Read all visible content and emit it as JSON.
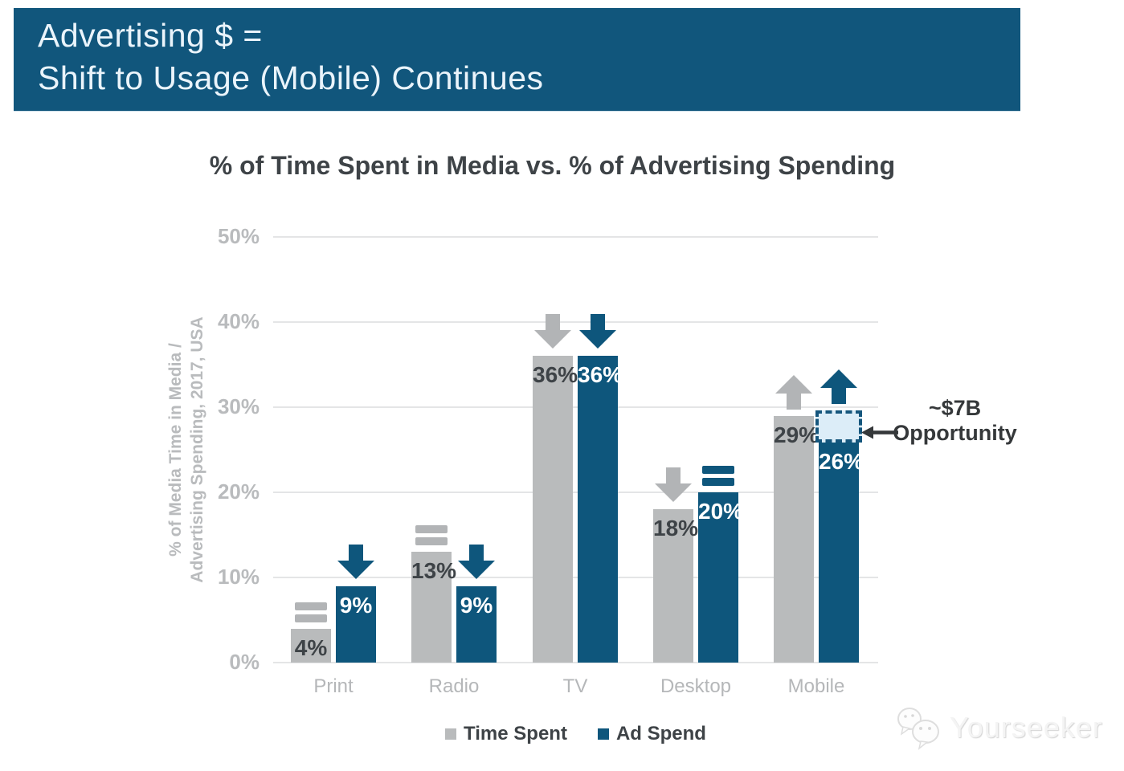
{
  "banner": {
    "line1": "Advertising $ =",
    "line2": "Shift to Usage (Mobile) Continues"
  },
  "chart_data": {
    "type": "bar",
    "title": "% of Time Spent in Media vs. % of Advertising Spending",
    "ylabel": "% of Media Time in Media / Advertising Spending, 2017, USA",
    "ylabel_line1": "% of Media Time in Media /",
    "ylabel_line2": "Advertising Spending, 2017, USA",
    "categories": [
      "Print",
      "Radio",
      "TV",
      "Desktop",
      "Mobile"
    ],
    "series": [
      {
        "name": "Time Spent",
        "values": [
          4,
          13,
          36,
          18,
          29
        ],
        "labels": [
          "4%",
          "13%",
          "36%",
          "18%",
          "29%"
        ],
        "color": "#B9BBBC",
        "trends": [
          "flat",
          "flat",
          "down",
          "down",
          "up"
        ]
      },
      {
        "name": "Ad Spend",
        "values": [
          9,
          9,
          36,
          20,
          26
        ],
        "labels": [
          "9%",
          "9%",
          "36%",
          "20%",
          "26%"
        ],
        "color": "#0E567C",
        "trends": [
          "down",
          "down",
          "down",
          "flat",
          "up"
        ]
      }
    ],
    "ylim": [
      0,
      50
    ],
    "yticks": [
      {
        "value": 0,
        "label": "0%"
      },
      {
        "value": 10,
        "label": "10%"
      },
      {
        "value": 20,
        "label": "20%"
      },
      {
        "value": 30,
        "label": "30%"
      },
      {
        "value": 40,
        "label": "40%"
      },
      {
        "value": 50,
        "label": "50%"
      }
    ],
    "grid": true,
    "legend_position": "bottom",
    "annotation": {
      "line1": "~$7B",
      "line2": "Opportunity",
      "points_to": "gap between Mobile Ad Spend (26%) and Time Spent (29%)"
    },
    "opportunity_box": {
      "category": "Mobile",
      "series": "Ad Spend",
      "from": 26,
      "to": 29.6
    }
  },
  "legend": {
    "items": [
      {
        "label": "Time Spent",
        "color": "#B9BBBC"
      },
      {
        "label": "Ad Spend",
        "color": "#0E567C"
      }
    ]
  },
  "watermark": {
    "text": "Yourseeker"
  },
  "colors": {
    "banner_bg": "#11567C",
    "banner_text": "#EAF4FB",
    "bar_gray": "#B9BBBC",
    "bar_blue": "#0E567C",
    "arrow_gray": "#B2B4B6",
    "arrow_blue": "#0E567C",
    "grid": "#E4E5E6",
    "axis_text": "#B9BBBD",
    "category_text": "#B5B7B9",
    "dark_text": "#3E4347",
    "annotation_text": "#35383A",
    "box_fill": "#DCEDF8",
    "box_border": "#15567D"
  }
}
